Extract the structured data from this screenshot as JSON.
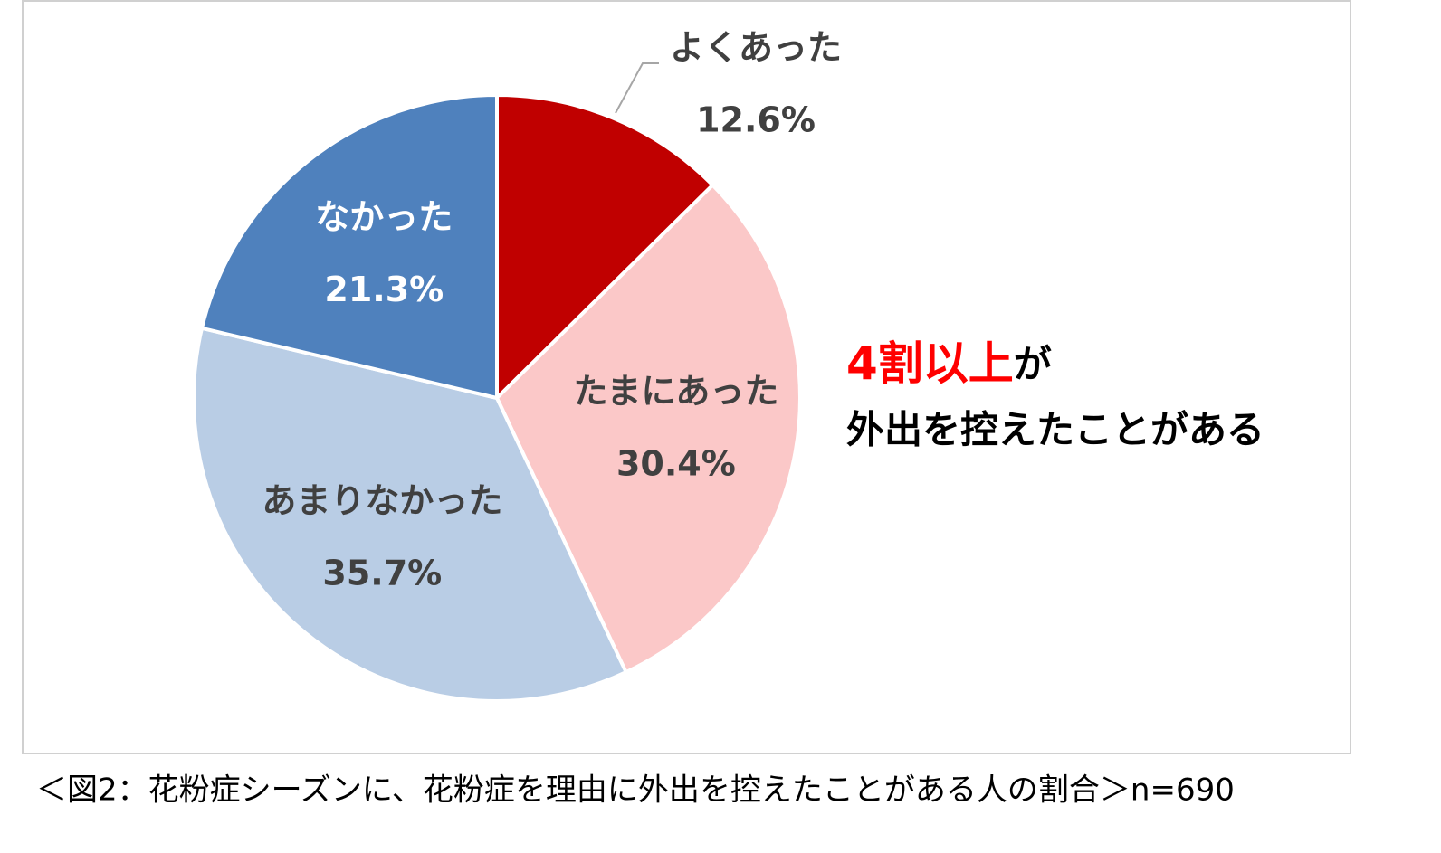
{
  "chart_data": {
    "type": "pie",
    "categories": [
      "よくあった",
      "たまにあった",
      "あまりなかった",
      "なかった"
    ],
    "values": [
      12.6,
      30.4,
      35.7,
      21.3
    ],
    "value_labels": [
      "12.6%",
      "30.4%",
      "35.7%",
      "21.3%"
    ],
    "colors": [
      "#c00000",
      "#fbc8c8",
      "#b9cde5",
      "#4f81bd"
    ],
    "label_colors": [
      "#404040",
      "#404040",
      "#404040",
      "#ffffff"
    ],
    "annotation": {
      "highlight": "4割以上",
      "rest": "が",
      "line2": "外出を控えたことがある"
    },
    "caption": "＜図2：花粉症シーズンに、花粉症を理由に外出を控えたことがある人の割合＞n=690"
  }
}
